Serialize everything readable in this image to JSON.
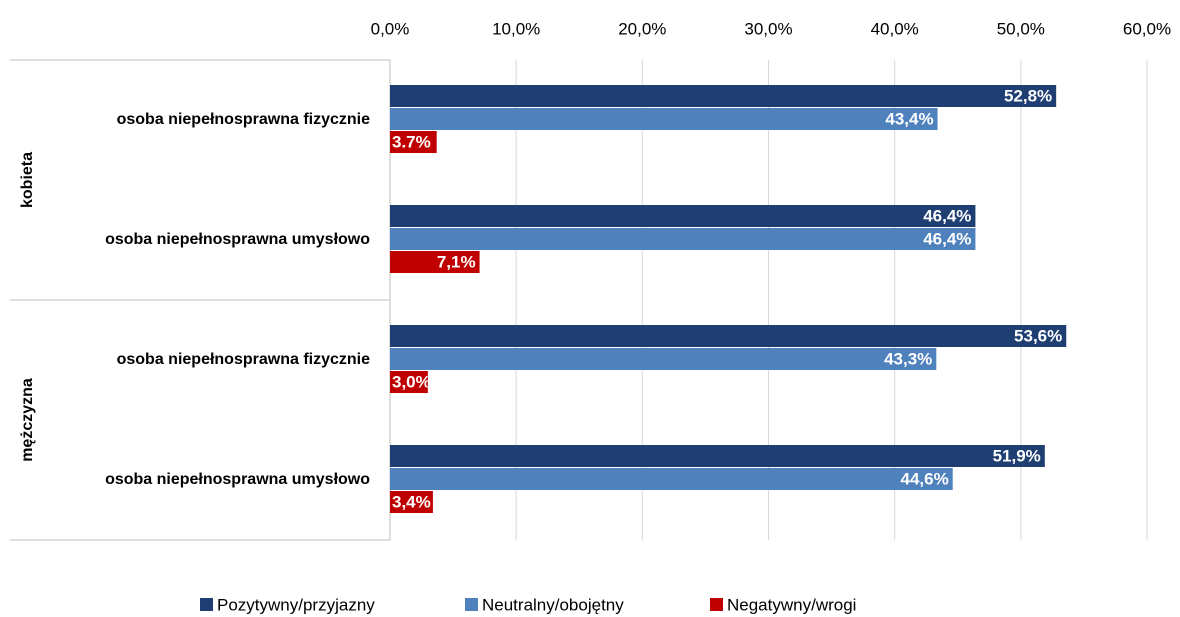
{
  "chart_data": {
    "type": "bar",
    "orientation": "horizontal",
    "groups": [
      "kobieta",
      "mężczyzna"
    ],
    "categories": [
      "osoba niepełnosprawna fizycznie",
      "osoba niepełnosprawna umysłowo",
      "osoba niepełnosprawna fizycznie",
      "osoba niepełnosprawna umysłowo"
    ],
    "series": [
      {
        "name": "Pozytywny/przyjazny",
        "color": "#1f3f73",
        "values": [
          52.8,
          46.4,
          53.6,
          51.9
        ],
        "value_labels": [
          "52,8%",
          "46,4%",
          "53,6%",
          "51,9%"
        ]
      },
      {
        "name": "Neutralny/obojętny",
        "color": "#4f81bd",
        "values": [
          43.4,
          46.4,
          43.3,
          44.6
        ],
        "value_labels": [
          "43,4%",
          "46,4%",
          "43,3%",
          "44,6%"
        ]
      },
      {
        "name": "Negatywny/wrogi",
        "color": "#c00000",
        "values": [
          3.7,
          7.1,
          3.0,
          3.4
        ],
        "value_labels": [
          "3.7%",
          "7,1%",
          "3,0%",
          "3,4%"
        ]
      }
    ],
    "xlim": [
      0,
      60
    ],
    "xticks": [
      {
        "value": 0,
        "label": "0,0%"
      },
      {
        "value": 10,
        "label": "10,0%"
      },
      {
        "value": 20,
        "label": "20,0%"
      },
      {
        "value": 30,
        "label": "30,0%"
      },
      {
        "value": 40,
        "label": "40,0%"
      },
      {
        "value": 50,
        "label": "50,0%"
      },
      {
        "value": 60,
        "label": "60,0%"
      }
    ],
    "grid": true,
    "legend": "bottom"
  }
}
